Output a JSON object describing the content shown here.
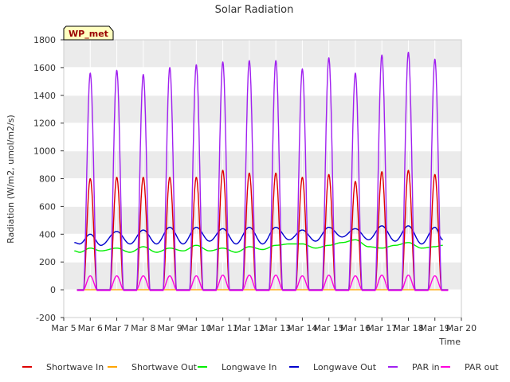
{
  "chart_data": {
    "type": "line",
    "title": "Solar Radiation",
    "xlabel": "Time",
    "ylabel": "Radiation (W/m2, umol/m2/s)",
    "badge": "WP_met",
    "xlim": [
      5,
      20
    ],
    "ylim": [
      -200,
      1800
    ],
    "xticks": [
      {
        "v": 5,
        "label": "Mar 5"
      },
      {
        "v": 6,
        "label": "Mar 6"
      },
      {
        "v": 7,
        "label": "Mar 7"
      },
      {
        "v": 8,
        "label": "Mar 8"
      },
      {
        "v": 9,
        "label": "Mar 9"
      },
      {
        "v": 10,
        "label": "Mar 10"
      },
      {
        "v": 11,
        "label": "Mar 11"
      },
      {
        "v": 12,
        "label": "Mar 12"
      },
      {
        "v": 13,
        "label": "Mar 13"
      },
      {
        "v": 14,
        "label": "Mar 14"
      },
      {
        "v": 15,
        "label": "Mar 15"
      },
      {
        "v": 16,
        "label": "Mar 16"
      },
      {
        "v": 17,
        "label": "Mar 17"
      },
      {
        "v": 18,
        "label": "Mar 18"
      },
      {
        "v": 19,
        "label": "Mar 19"
      },
      {
        "v": 20,
        "label": "Mar 20"
      }
    ],
    "yticks": [
      -200,
      0,
      200,
      400,
      600,
      800,
      1000,
      1200,
      1400,
      1600,
      1800
    ],
    "grid": true,
    "legend_position": "bottom",
    "day_centers": [
      6.0,
      7.0,
      8.0,
      9.0,
      10.0,
      11.0,
      12.0,
      13.0,
      14.0,
      15.0,
      16.0,
      17.0,
      18.0,
      19.0
    ],
    "series": [
      {
        "name": "Shortwave In",
        "color": "#dd0000",
        "kind": "diurnal",
        "baseline": 0,
        "peaks": [
          800,
          810,
          810,
          810,
          810,
          860,
          840,
          840,
          810,
          830,
          780,
          850,
          860,
          830
        ]
      },
      {
        "name": "Shortwave Out",
        "color": "#ffa500",
        "kind": "diurnal",
        "baseline": 0,
        "peaks": [
          0,
          0,
          0,
          0,
          0,
          0,
          0,
          0,
          0,
          0,
          0,
          0,
          0,
          0
        ]
      },
      {
        "name": "Longwave In",
        "color": "#00ee00",
        "kind": "smooth",
        "x": [
          5.4,
          5.6,
          6.0,
          6.4,
          7.0,
          7.5,
          8.0,
          8.5,
          9.0,
          9.5,
          10.0,
          10.5,
          11.0,
          11.5,
          12.0,
          12.5,
          13.0,
          13.5,
          14.0,
          14.5,
          15.0,
          15.5,
          16.0,
          16.5,
          17.0,
          17.5,
          18.0,
          18.5,
          19.0,
          19.3
        ],
        "y": [
          280,
          270,
          300,
          280,
          300,
          270,
          310,
          270,
          300,
          280,
          320,
          280,
          300,
          270,
          310,
          290,
          320,
          330,
          330,
          300,
          320,
          340,
          360,
          310,
          300,
          320,
          340,
          300,
          310,
          320
        ]
      },
      {
        "name": "Longwave Out",
        "color": "#0000cc",
        "kind": "smooth",
        "x": [
          5.4,
          5.6,
          6.0,
          6.4,
          7.0,
          7.5,
          8.0,
          8.5,
          9.0,
          9.5,
          10.0,
          10.5,
          11.0,
          11.5,
          12.0,
          12.5,
          13.0,
          13.5,
          14.0,
          14.5,
          15.0,
          15.5,
          16.0,
          16.5,
          17.0,
          17.5,
          18.0,
          18.5,
          19.0,
          19.3
        ],
        "y": [
          340,
          330,
          400,
          320,
          420,
          330,
          430,
          330,
          450,
          330,
          450,
          350,
          440,
          330,
          450,
          330,
          450,
          360,
          430,
          350,
          450,
          380,
          440,
          360,
          460,
          350,
          460,
          330,
          450,
          360
        ]
      },
      {
        "name": "PAR in",
        "color": "#a020f0",
        "kind": "diurnal",
        "baseline": 0,
        "peaks": [
          1560,
          1580,
          1550,
          1600,
          1620,
          1640,
          1650,
          1650,
          1590,
          1670,
          1560,
          1690,
          1710,
          1660
        ]
      },
      {
        "name": "PAR out",
        "color": "#ff00dd",
        "kind": "diurnal",
        "baseline": -5,
        "peaks": [
          100,
          100,
          100,
          100,
          100,
          105,
          105,
          105,
          100,
          105,
          100,
          105,
          105,
          100
        ]
      }
    ]
  }
}
